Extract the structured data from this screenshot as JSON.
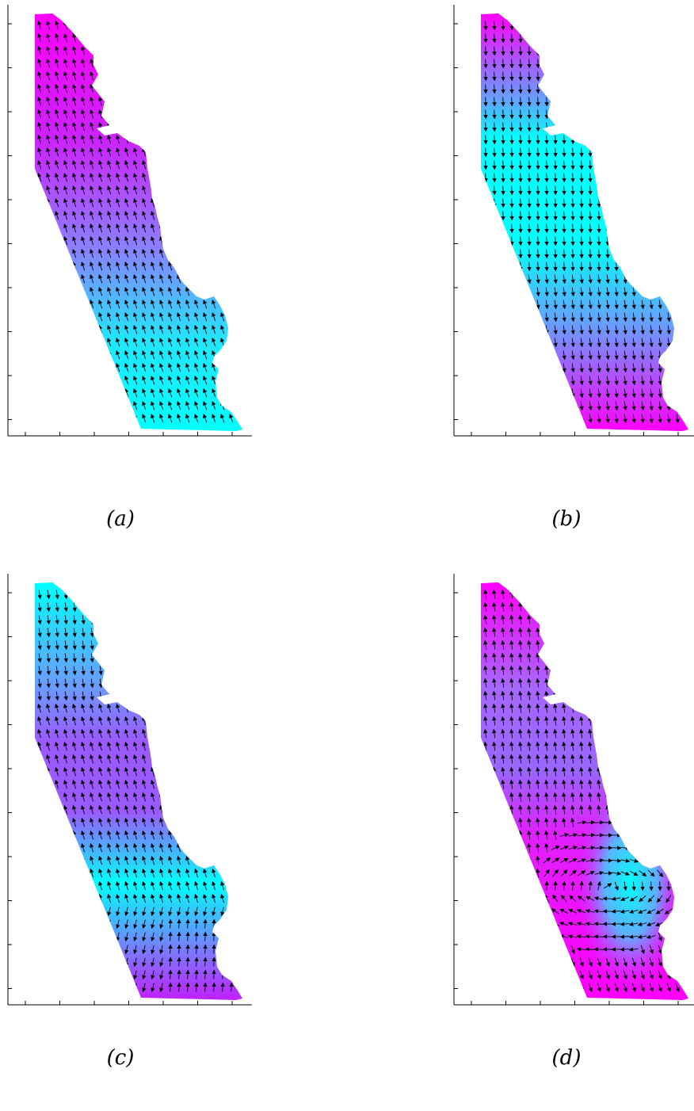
{
  "panels": [
    {
      "label": "(a)",
      "colormap": "magenta-top-cyan-bottom",
      "flow": "northward"
    },
    {
      "label": "(b)",
      "colormap": "magenta-ends-cyan-middle",
      "flow": "southward"
    },
    {
      "label": "(c)",
      "colormap": "cyan-ends-purple-middle",
      "flow": "mixed"
    },
    {
      "label": "(d)",
      "colormap": "magenta-with-cyan-bulge",
      "flow": "eddy"
    }
  ],
  "colors": {
    "magenta": "#ff00ff",
    "purple": "#9966ff",
    "cyan": "#00ffff",
    "axis": "#000000"
  },
  "axes": {
    "y_ticks": 10,
    "x_ticks": 7,
    "tick_labels": "none"
  }
}
